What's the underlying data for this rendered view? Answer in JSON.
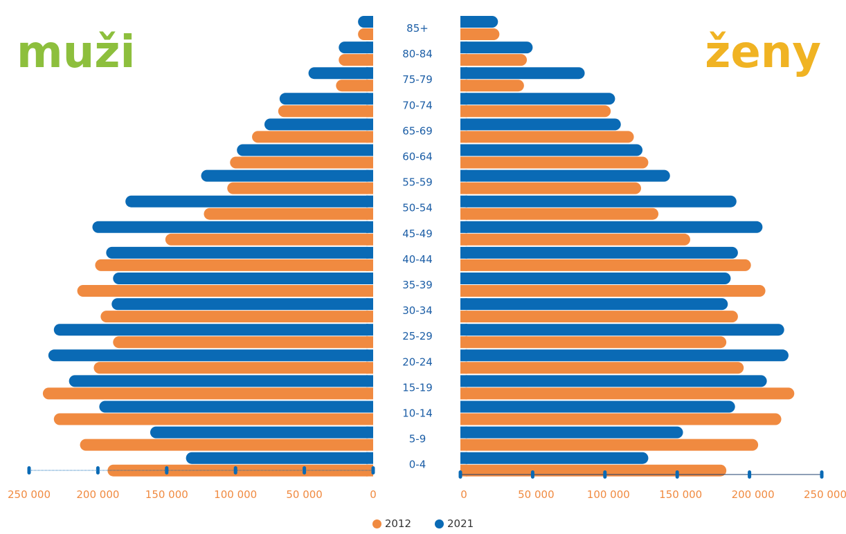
{
  "titles": {
    "left": "muži",
    "right": "ženy"
  },
  "colors": {
    "left_title": "#8dbf3d",
    "right_title": "#f0b323",
    "s2012": "#f08a40",
    "s2021": "#0a6ab5",
    "label": "#1c5ea6",
    "axis": "#1c3f6e"
  },
  "chart_data": {
    "type": "bar",
    "orientation": "horizontal",
    "layout": "population-pyramid",
    "categories": [
      "0-4",
      "5-9",
      "10-14",
      "15-19",
      "20-24",
      "25-29",
      "30-34",
      "35-39",
      "40-44",
      "45-49",
      "50-54",
      "55-59",
      "60-64",
      "65-69",
      "70-74",
      "75-79",
      "80-84",
      "85+"
    ],
    "panels": [
      {
        "name": "muži",
        "series": [
          {
            "name": "2012",
            "values": [
              193000,
              213000,
              232000,
              240000,
              203000,
              189000,
              198000,
              215000,
              202000,
              151000,
              123000,
              106000,
              104000,
              88000,
              69000,
              27000,
              25000,
              11000
            ]
          },
          {
            "name": "2021",
            "values": [
              136000,
              162000,
              199000,
              221000,
              236000,
              232000,
              190000,
              189000,
              194000,
              204000,
              180000,
              125000,
              99000,
              79000,
              68000,
              47000,
              25000,
              11000
            ]
          }
        ]
      },
      {
        "name": "ženy",
        "series": [
          {
            "name": "2012",
            "values": [
              184000,
              206000,
              222000,
              231000,
              196000,
              184000,
              192000,
              211000,
              201000,
              159000,
              137000,
              125000,
              130000,
              120000,
              104000,
              44000,
              46000,
              27000
            ]
          },
          {
            "name": "2021",
            "values": [
              130000,
              154000,
              190000,
              212000,
              227000,
              224000,
              185000,
              187000,
              192000,
              209000,
              191000,
              145000,
              126000,
              111000,
              107000,
              86000,
              50000,
              26000
            ]
          }
        ]
      }
    ],
    "xlim": [
      0,
      250000
    ],
    "left_ticks": [
      "250 000",
      "200 000",
      "150 000",
      "100 000",
      "50 000",
      "0"
    ],
    "right_ticks": [
      "0",
      "50 000",
      "100 000",
      "150 000",
      "200 000",
      "250 000"
    ],
    "legend": [
      "2012",
      "2021"
    ],
    "legend_position": "bottom"
  }
}
